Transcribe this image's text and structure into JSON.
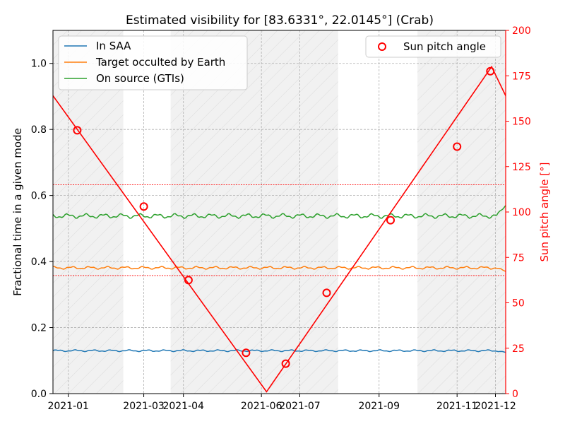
{
  "chart_data": {
    "type": "line",
    "title": "Estimated visibility for [83.6331°, 22.0145°] (Crab)",
    "x_ticks": [
      "2021-01",
      "2021-03",
      "2021-04",
      "2021-06",
      "2021-07",
      "2021-09",
      "2021-11",
      "2021-12"
    ],
    "xlim": [
      "2020-12-20",
      "2021-12-09"
    ],
    "xgrid": [
      "2021-01-01",
      "2021-03-01",
      "2021-04-01",
      "2021-06-01",
      "2021-07-01",
      "2021-09-01",
      "2021-11-01",
      "2021-12-01"
    ],
    "left_axis": {
      "label": "Fractional time in a given mode",
      "ylim": [
        0,
        1.1
      ],
      "ticks": [
        "0.0",
        "0.2",
        "0.4",
        "0.6",
        "0.8",
        "1.0"
      ],
      "tick_values": [
        0,
        0.2,
        0.4,
        0.6,
        0.8,
        1.0
      ]
    },
    "right_axis": {
      "label": "Sun pitch angle [°]",
      "ylim": [
        0,
        200
      ],
      "color": "#ff0000",
      "ticks": [
        "0",
        "25",
        "50",
        "75",
        "100",
        "125",
        "150",
        "175",
        "200"
      ],
      "tick_values": [
        0,
        25,
        50,
        75,
        100,
        125,
        150,
        175,
        200
      ]
    },
    "grid": true,
    "shaded_periods": [
      [
        "2020-12-20",
        "2021-02-13"
      ],
      [
        "2021-03-22",
        "2021-07-31"
      ],
      [
        "2021-10-01",
        "2021-12-09"
      ]
    ],
    "series": [
      {
        "name": "In SAA",
        "color": "#1f77b4",
        "mean": 0.13,
        "amplitude": 0.002,
        "end_value": 0.125
      },
      {
        "name": "Target occulted by Earth",
        "color": "#ff7f0e",
        "mean": 0.381,
        "amplitude": 0.003,
        "end_value": 0.37
      },
      {
        "name": "On source (GTIs)",
        "color": "#2ca02c",
        "mean": 0.538,
        "amplitude": 0.005,
        "end_value": 0.57
      }
    ],
    "sun_pitch": {
      "name": "Sun pitch angle",
      "color": "#ff0000",
      "line": [
        [
          "2020-12-20",
          164
        ],
        [
          "2021-06-05",
          1
        ],
        [
          "2021-11-28",
          180
        ],
        [
          "2021-12-09",
          164
        ]
      ],
      "markers": [
        [
          "2021-01-08",
          145
        ],
        [
          "2021-03-01",
          103
        ],
        [
          "2021-04-05",
          62.5
        ],
        [
          "2021-05-20",
          22.5
        ],
        [
          "2021-06-20",
          16.5
        ],
        [
          "2021-07-22",
          55.5
        ],
        [
          "2021-09-10",
          95.5
        ],
        [
          "2021-11-01",
          136
        ],
        [
          "2021-11-27",
          177.5
        ]
      ]
    },
    "threshold_lines": [
      115,
      65
    ],
    "legend_left": "upper-left",
    "legend_right": "upper-right"
  }
}
